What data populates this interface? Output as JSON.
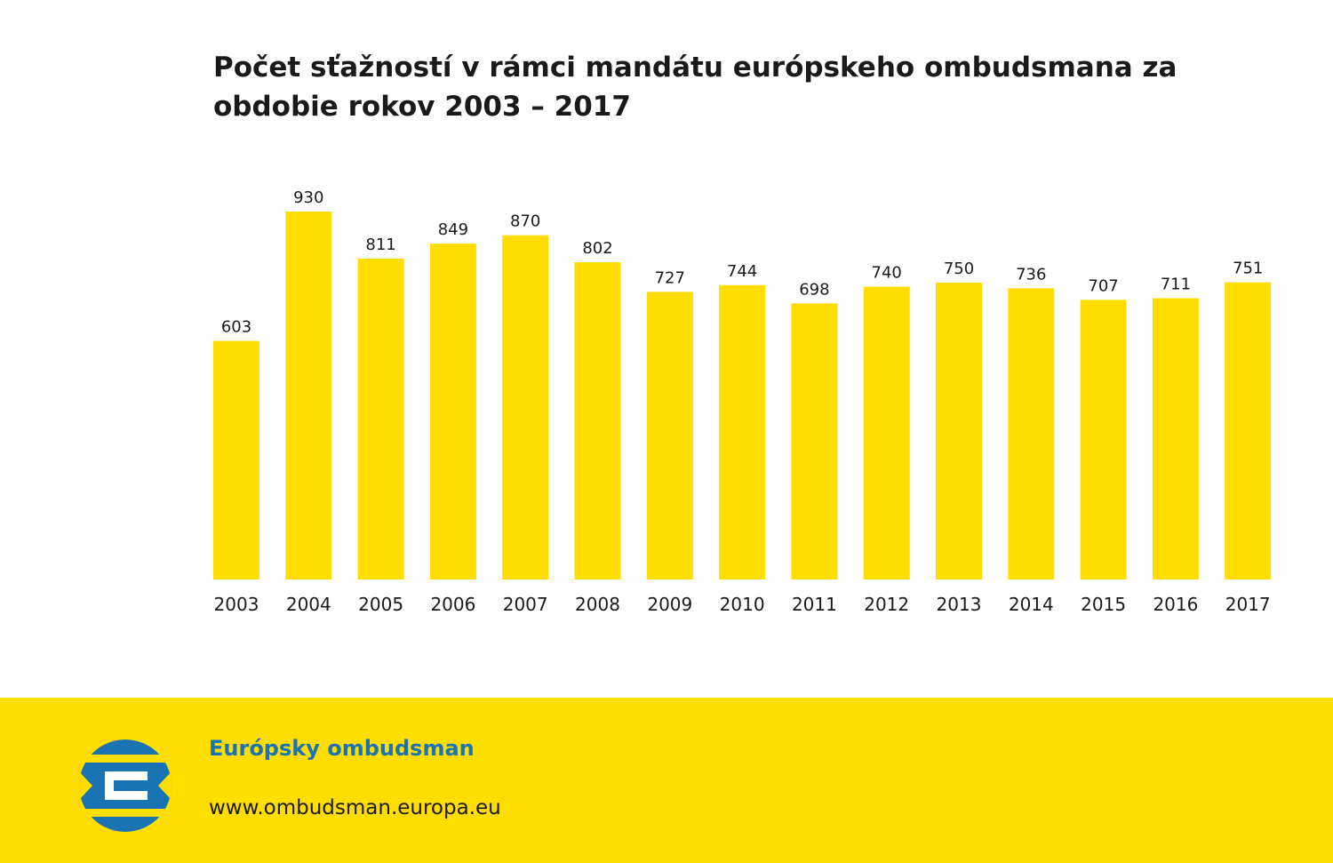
{
  "chart_data": {
    "type": "bar",
    "title": "Počet sťažností v rámci mandátu európskeho ombudsmana za obdobie rokov 2003 – 2017",
    "categories": [
      "2003",
      "2004",
      "2005",
      "2006",
      "2007",
      "2008",
      "2009",
      "2010",
      "2011",
      "2012",
      "2013",
      "2014",
      "2015",
      "2016",
      "2017"
    ],
    "values": [
      603,
      930,
      811,
      849,
      870,
      802,
      727,
      744,
      698,
      740,
      750,
      736,
      707,
      711,
      751
    ],
    "xlabel": "",
    "ylabel": "",
    "ylim": [
      0,
      930
    ],
    "grid": false,
    "data_labels": true,
    "bar_color": "#FFDD00"
  },
  "footer": {
    "org_name": "Európsky ombudsman",
    "url": "www.ombudsman.europa.eu",
    "logo_icon": "european-ombudsman-logo-icon",
    "logo_colors": [
      "#1a73b3",
      "#FFDD00",
      "#ffffff"
    ]
  }
}
